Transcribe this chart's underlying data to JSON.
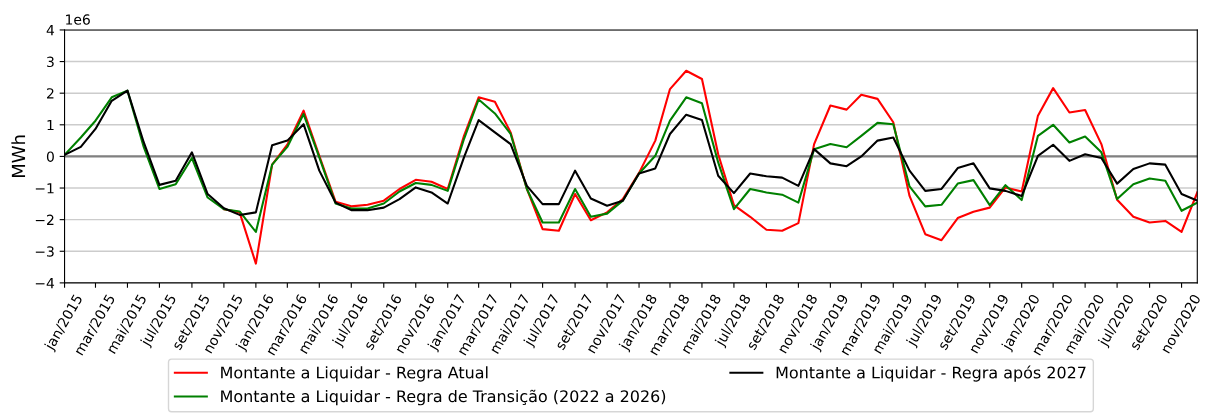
{
  "chart_data": {
    "type": "line",
    "ylabel": "MWh",
    "annotations": [
      "1e6"
    ],
    "x": [
      "2015-01",
      "2015-02",
      "2015-03",
      "2015-04",
      "2015-05",
      "2015-06",
      "2015-07",
      "2015-08",
      "2015-09",
      "2015-10",
      "2015-11",
      "2015-12",
      "2016-01",
      "2016-02",
      "2016-03",
      "2016-04",
      "2016-05",
      "2016-06",
      "2016-07",
      "2016-08",
      "2016-09",
      "2016-10",
      "2016-11",
      "2016-12",
      "2017-01",
      "2017-02",
      "2017-03",
      "2017-04",
      "2017-05",
      "2017-06",
      "2017-07",
      "2017-08",
      "2017-09",
      "2017-10",
      "2017-11",
      "2017-12",
      "2018-01",
      "2018-02",
      "2018-03",
      "2018-04",
      "2018-05",
      "2018-06",
      "2018-07",
      "2018-08",
      "2018-09",
      "2018-10",
      "2018-11",
      "2018-12",
      "2019-01",
      "2019-02",
      "2019-03",
      "2019-04",
      "2019-05",
      "2019-06",
      "2019-07",
      "2019-08",
      "2019-09",
      "2019-10",
      "2019-11",
      "2019-12",
      "2020-01",
      "2020-02",
      "2020-03",
      "2020-04",
      "2020-05",
      "2020-06",
      "2020-07",
      "2020-08",
      "2020-09",
      "2020-10",
      "2020-11",
      "2020-12"
    ],
    "series": [
      {
        "name": "Montante a Liquidar - Regra Atual",
        "color": "#ff0000",
        "values": [
          null,
          null,
          null,
          null,
          null,
          null,
          null,
          null,
          null,
          null,
          -1.67,
          -1.77,
          -3.39,
          -0.26,
          0.37,
          1.45,
          0.02,
          -1.43,
          -1.58,
          -1.53,
          -1.4,
          -1.03,
          -0.74,
          -0.8,
          -1.03,
          0.65,
          1.87,
          1.73,
          0.76,
          -1.03,
          -2.3,
          -2.35,
          -1.19,
          -2.02,
          -1.77,
          -1.35,
          -0.52,
          0.5,
          2.13,
          2.71,
          2.45,
          0.07,
          -1.54,
          -1.91,
          -2.32,
          -2.35,
          -2.11,
          0.39,
          1.61,
          1.48,
          1.95,
          1.82,
          1.08,
          -1.25,
          -2.46,
          -2.65,
          -1.95,
          -1.75,
          -1.62,
          -0.98,
          -1.11,
          1.29,
          2.16,
          1.39,
          1.47,
          0.39,
          -1.37,
          -1.91,
          -2.09,
          -2.04,
          -2.39,
          -1.14
        ]
      },
      {
        "name": "Montante a Liquidar - Regra de Transição (2022 a 2026)",
        "color": "#008000",
        "values": [
          0.05,
          0.6,
          1.13,
          1.87,
          2.08,
          0.3,
          -1.03,
          -0.88,
          -0.05,
          -1.3,
          -1.67,
          -1.74,
          -2.39,
          -0.26,
          0.3,
          1.34,
          -0.03,
          -1.49,
          -1.65,
          -1.65,
          -1.49,
          -1.11,
          -0.84,
          -0.9,
          -1.09,
          0.55,
          1.8,
          1.36,
          0.71,
          -1.03,
          -2.09,
          -2.09,
          -1.03,
          -1.91,
          -1.81,
          -1.4,
          -0.54,
          0.02,
          1.13,
          1.87,
          1.68,
          -0.19,
          -1.67,
          -1.03,
          -1.14,
          -1.21,
          -1.46,
          0.23,
          0.39,
          0.29,
          0.65,
          1.06,
          1.02,
          -0.95,
          -1.58,
          -1.53,
          -0.86,
          -0.75,
          -1.54,
          -0.91,
          -1.38,
          0.65,
          1.0,
          0.44,
          0.63,
          0.13,
          -1.35,
          -0.88,
          -0.7,
          -0.77,
          -1.72,
          -1.46
        ]
      },
      {
        "name": "Montante a Liquidar - Regra após 2027",
        "color": "#000000",
        "values": [
          0.05,
          0.3,
          0.87,
          1.76,
          2.08,
          0.45,
          -0.9,
          -0.77,
          0.13,
          -1.19,
          -1.64,
          -1.85,
          -1.77,
          0.35,
          0.5,
          1.02,
          -0.45,
          -1.46,
          -1.7,
          -1.7,
          -1.62,
          -1.35,
          -0.98,
          -1.14,
          -1.49,
          -0.03,
          1.15,
          0.76,
          0.39,
          -0.93,
          -1.51,
          -1.51,
          -0.45,
          -1.33,
          -1.56,
          -1.4,
          -0.54,
          -0.38,
          0.71,
          1.32,
          1.15,
          -0.61,
          -1.16,
          -0.54,
          -0.63,
          -0.67,
          -0.93,
          0.23,
          -0.22,
          -0.31,
          0.0,
          0.5,
          0.6,
          -0.45,
          -1.09,
          -1.03,
          -0.37,
          -0.22,
          -1.01,
          -1.09,
          -1.25,
          0.02,
          0.37,
          -0.14,
          0.07,
          -0.05,
          -0.86,
          -0.4,
          -0.22,
          -0.26,
          -1.19,
          -1.4
        ]
      }
    ],
    "xlim": [
      "2015-01",
      "2020-12"
    ],
    "xticks": [
      {
        "value": "2015-01",
        "label": "jan/2015"
      },
      {
        "value": "2015-03",
        "label": "mar/2015"
      },
      {
        "value": "2015-05",
        "label": "mai/2015"
      },
      {
        "value": "2015-07",
        "label": "jul/2015"
      },
      {
        "value": "2015-09",
        "label": "set/2015"
      },
      {
        "value": "2015-11",
        "label": "nov/2015"
      },
      {
        "value": "2016-01",
        "label": "jan/2016"
      },
      {
        "value": "2016-03",
        "label": "mar/2016"
      },
      {
        "value": "2016-05",
        "label": "mai/2016"
      },
      {
        "value": "2016-07",
        "label": "jul/2016"
      },
      {
        "value": "2016-09",
        "label": "set/2016"
      },
      {
        "value": "2016-11",
        "label": "nov/2016"
      },
      {
        "value": "2017-01",
        "label": "jan/2017"
      },
      {
        "value": "2017-03",
        "label": "mar/2017"
      },
      {
        "value": "2017-05",
        "label": "mai/2017"
      },
      {
        "value": "2017-07",
        "label": "jul/2017"
      },
      {
        "value": "2017-09",
        "label": "set/2017"
      },
      {
        "value": "2017-11",
        "label": "nov/2017"
      },
      {
        "value": "2018-01",
        "label": "jan/2018"
      },
      {
        "value": "2018-03",
        "label": "mar/2018"
      },
      {
        "value": "2018-05",
        "label": "mai/2018"
      },
      {
        "value": "2018-07",
        "label": "jul/2018"
      },
      {
        "value": "2018-09",
        "label": "set/2018"
      },
      {
        "value": "2018-11",
        "label": "nov/2018"
      },
      {
        "value": "2019-01",
        "label": "jan/2019"
      },
      {
        "value": "2019-03",
        "label": "mar/2019"
      },
      {
        "value": "2019-05",
        "label": "mai/2019"
      },
      {
        "value": "2019-07",
        "label": "jul/2019"
      },
      {
        "value": "2019-09",
        "label": "set/2019"
      },
      {
        "value": "2019-11",
        "label": "nov/2019"
      },
      {
        "value": "2020-01",
        "label": "jan/2020"
      },
      {
        "value": "2020-03",
        "label": "mar/2020"
      },
      {
        "value": "2020-05",
        "label": "mai/2020"
      },
      {
        "value": "2020-07",
        "label": "jul/2020"
      },
      {
        "value": "2020-09",
        "label": "set/2020"
      },
      {
        "value": "2020-11",
        "label": "nov/2020"
      }
    ],
    "ylim": [
      -4,
      4
    ],
    "yticks": [
      {
        "value": -4,
        "label": "−4"
      },
      {
        "value": -3,
        "label": "−3"
      },
      {
        "value": -2,
        "label": "−2"
      },
      {
        "value": -1,
        "label": "−1"
      },
      0,
      1,
      2,
      3,
      4
    ],
    "grid": "y",
    "legend": "bottom",
    "marker": "none",
    "line_style": "solid",
    "ref_lines": [
      {
        "axis": "y",
        "value": 0,
        "color": "#808080"
      }
    ]
  }
}
